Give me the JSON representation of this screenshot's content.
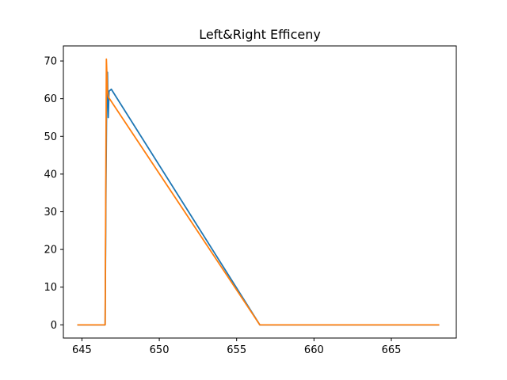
{
  "chart_data": {
    "type": "line",
    "title": "Left&Right Efficeny",
    "xlabel": "",
    "ylabel": "",
    "xlim": [
      643.8,
      669.2
    ],
    "ylim": [
      -3.5,
      74.0
    ],
    "x_ticks": [
      645,
      650,
      655,
      660,
      665
    ],
    "y_ticks": [
      0,
      10,
      20,
      30,
      40,
      50,
      60,
      70
    ],
    "grid": false,
    "legend": "none",
    "series": [
      {
        "color": "#1f77b4",
        "points": [
          [
            644.7,
            0.0
          ],
          [
            646.5,
            0.0
          ],
          [
            646.55,
            35.0
          ],
          [
            646.6,
            60.0
          ],
          [
            646.65,
            67.0
          ],
          [
            646.7,
            55.0
          ],
          [
            646.75,
            62.0
          ],
          [
            646.9,
            62.5
          ],
          [
            656.5,
            0.0
          ],
          [
            668.1,
            0.0
          ]
        ]
      },
      {
        "color": "#ff7f0e",
        "points": [
          [
            644.7,
            0.0
          ],
          [
            646.5,
            0.0
          ],
          [
            646.58,
            70.5
          ],
          [
            646.65,
            62.0
          ],
          [
            646.7,
            60.5
          ],
          [
            656.5,
            0.0
          ],
          [
            668.1,
            0.0
          ]
        ]
      }
    ]
  }
}
